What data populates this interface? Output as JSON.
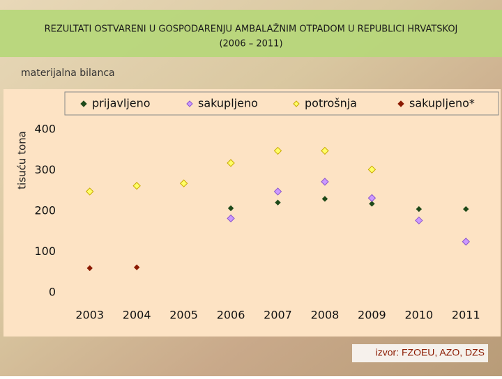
{
  "slide_title": "REZULTATI OSTVARENI U GOSPODARENJU AMBALAŽNIM OTPADOM U REPUBLICI HRVATSKOJ",
  "slide_subtitle": "(2006 – 2011)",
  "slide_label": "materijalna bilanca",
  "source": "izvor: FZOEU, AZO, DZS",
  "chart_data": {
    "type": "scatter",
    "y_label": "tisuću tona",
    "categories": [
      "2003",
      "2004",
      "2005",
      "2006",
      "2007",
      "2008",
      "2009",
      "2010",
      "2011"
    ],
    "series": [
      {
        "name": "prijavljeno",
        "color": "#1f4a1a",
        "values": [
          null,
          null,
          null,
          207,
          221,
          230,
          218,
          205,
          205
        ]
      },
      {
        "name": "sakupljeno",
        "color": "#cc99ff",
        "values": [
          null,
          null,
          null,
          182,
          248,
          272,
          232,
          177,
          125
        ]
      },
      {
        "name": "potrošnja",
        "color": "#ffff66",
        "values": [
          248,
          262,
          268,
          318,
          348,
          348,
          302,
          null,
          null
        ]
      },
      {
        "name": "sakupljeno*",
        "color": "#8b1a00",
        "values": [
          60,
          62,
          null,
          null,
          null,
          null,
          null,
          null,
          null
        ]
      }
    ],
    "ylim": [
      0,
      400
    ],
    "yticks": [
      0,
      100,
      200,
      300,
      400
    ],
    "grid": false,
    "legend": "top"
  }
}
